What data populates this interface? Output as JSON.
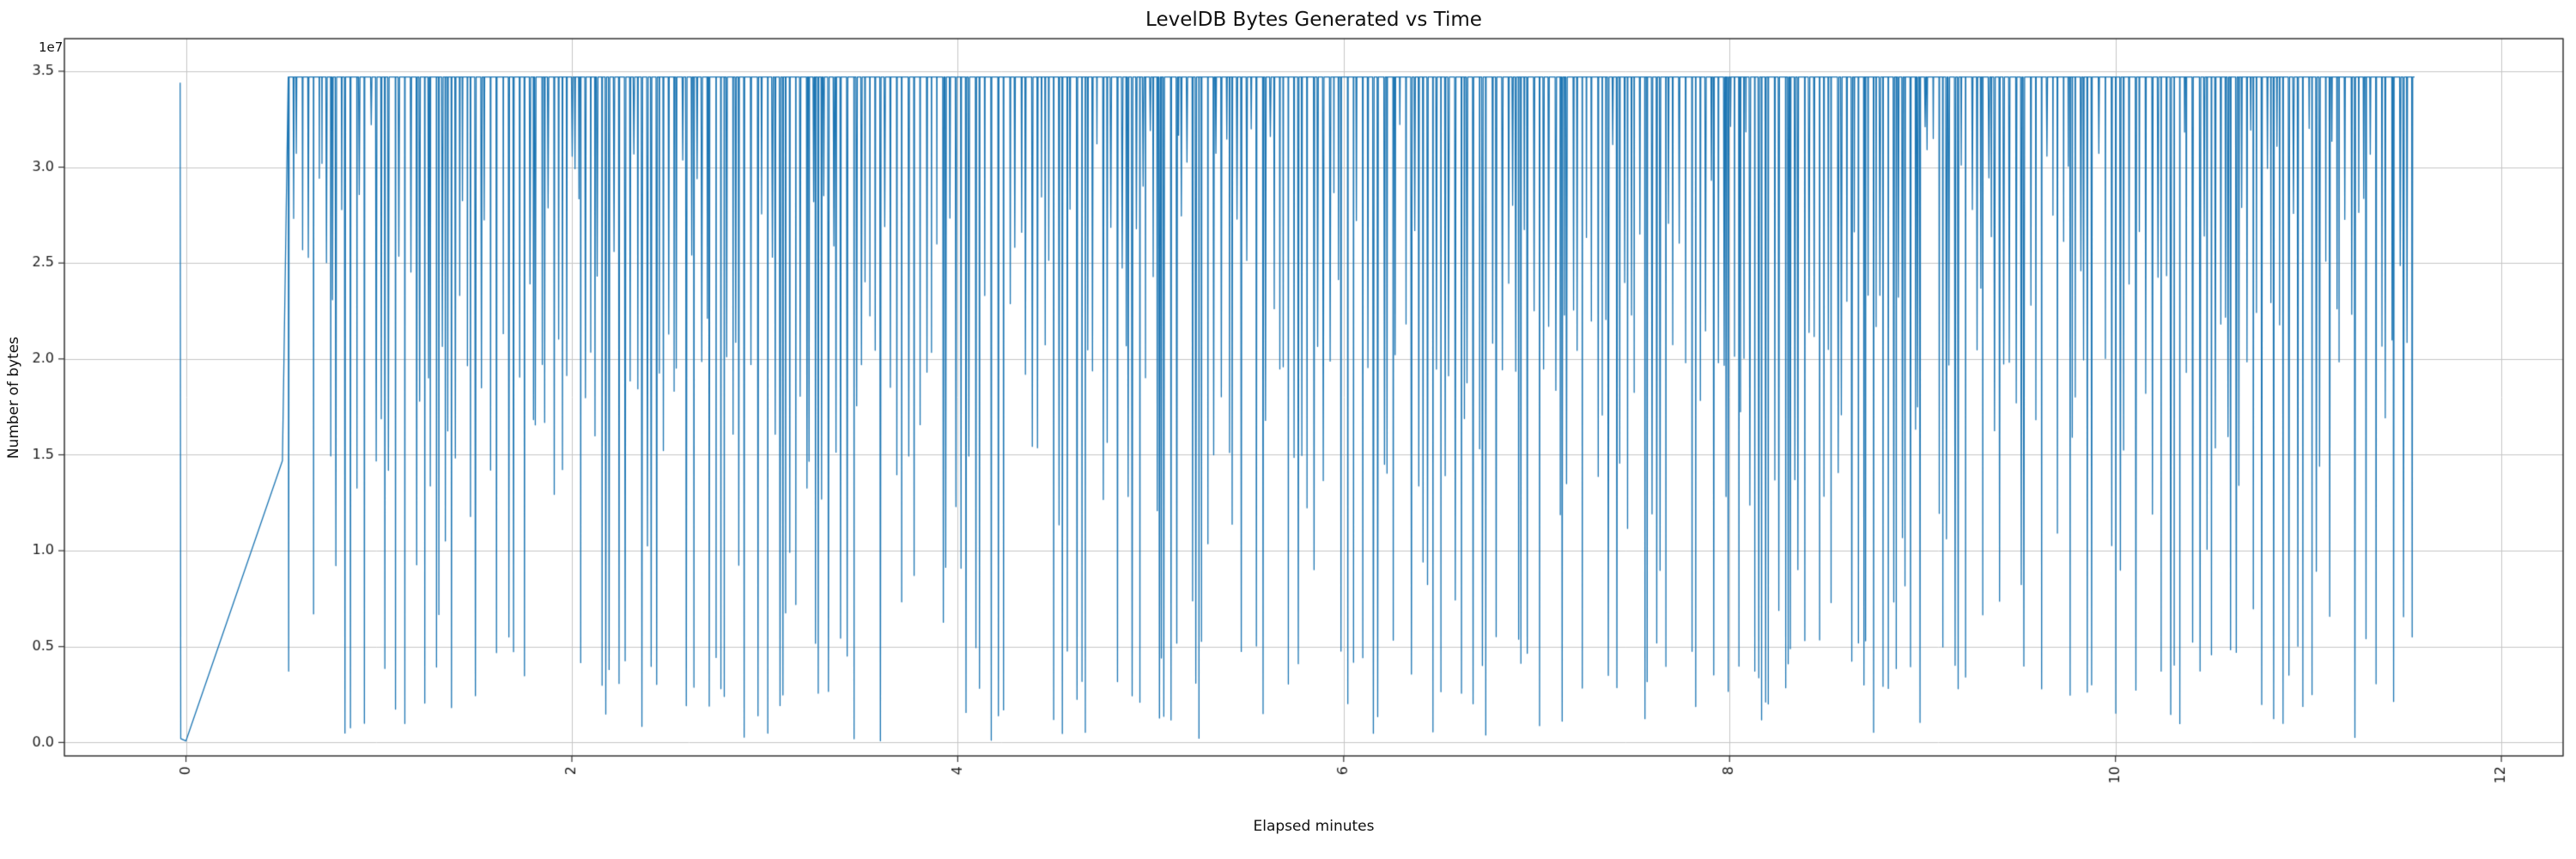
{
  "chart_data": {
    "type": "line",
    "title": "LevelDB Bytes Generated vs Time",
    "xlabel": "Elapsed minutes",
    "ylabel": "Number of bytes",
    "y_offset_label": "1e7",
    "line_color": "#1f77b4",
    "grid_color": "#c6c6c6",
    "axis_color": "#333333",
    "text_color": "#1a1a1a",
    "background": "#ffffff",
    "grid": true,
    "x_ticks": [
      0,
      2,
      4,
      6,
      8,
      10,
      12
    ],
    "x_tick_labels": [
      "0",
      "2",
      "4",
      "6",
      "8",
      "10",
      "12"
    ],
    "x_tick_rotation": 90,
    "y_ticks": [
      0,
      5000000,
      10000000,
      15000000,
      20000000,
      25000000,
      30000000,
      35000000
    ],
    "y_tick_labels": [
      "0.0",
      "0.5",
      "1.0",
      "1.5",
      "2.0",
      "2.5",
      "3.0",
      "3.5"
    ],
    "xlim": [
      -0.63,
      12.32
    ],
    "ylim": [
      -700000,
      36700000
    ],
    "baseline": 34700000,
    "key_points": [
      [
        -0.03,
        34400000
      ],
      [
        -0.027,
        200000
      ],
      [
        0.0,
        80000
      ],
      [
        0.5,
        14700000
      ],
      [
        0.53,
        34700000
      ]
    ],
    "noise": {
      "seed": 42,
      "x_start": 0.53,
      "x_end": 11.55,
      "min_gap": 0.004,
      "gap_jitter": 0.028,
      "min_width": 0.002,
      "width_jitter": 0.006,
      "tiers": [
        {
          "p": 0.32,
          "base": 0.55,
          "range": 0.38
        },
        {
          "p": 0.68,
          "base": 0.18,
          "range": 0.42
        },
        {
          "p": 1.0,
          "base": 0.0,
          "range": 0.16
        }
      ]
    },
    "description": "Noisy single-series line: flat top near 3.47e7 bytes with hundreds of sharp downward spikes of varying depth between ~0 and ~3.2e7 bytes, spanning ~0.53 to ~11.55 elapsed minutes. Near x=0 there is an initial full-height vertical spike, followed by a linear ramp from ~0 up to ~1.47e7 at x=0.5, after which the dense spiky regime begins."
  }
}
